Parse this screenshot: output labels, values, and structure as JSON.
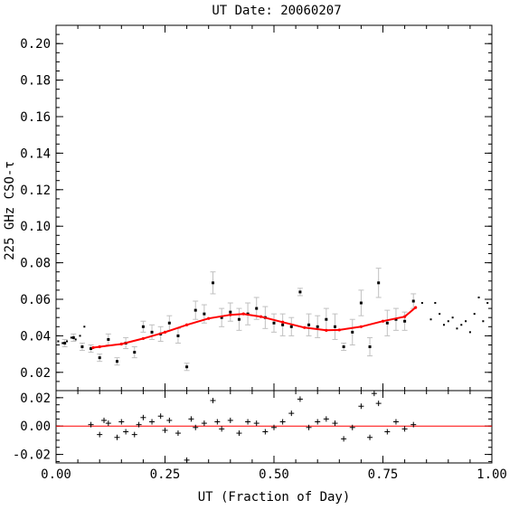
{
  "chart_data": {
    "type": "scatter",
    "title": "UT Date: 20060207",
    "xlabel": "UT (Fraction of Day)",
    "ylabel": "225 GHz CSO-τ",
    "xlim": [
      0.0,
      1.0
    ],
    "xticks": [
      "0.00",
      "0.25",
      "0.50",
      "0.75",
      "1.00"
    ],
    "xtick_values": [
      0.0,
      0.25,
      0.5,
      0.75,
      1.0
    ],
    "top_panel": {
      "ylim": [
        0.01,
        0.21
      ],
      "yticks": [
        "0.02",
        "0.04",
        "0.06",
        "0.08",
        "0.10",
        "0.12",
        "0.14",
        "0.16",
        "0.18",
        "0.20"
      ],
      "ytick_values": [
        0.02,
        0.04,
        0.06,
        0.08,
        0.1,
        0.12,
        0.14,
        0.16,
        0.18,
        0.2
      ],
      "measured_points": {
        "x": [
          0.02,
          0.04,
          0.06,
          0.08,
          0.1,
          0.12,
          0.14,
          0.16,
          0.18,
          0.2,
          0.22,
          0.24,
          0.26,
          0.28,
          0.3,
          0.32,
          0.34,
          0.36,
          0.38,
          0.4,
          0.42,
          0.44,
          0.46,
          0.48,
          0.5,
          0.52,
          0.54,
          0.56,
          0.58,
          0.6,
          0.62,
          0.64,
          0.66,
          0.68,
          0.7,
          0.72,
          0.74,
          0.76,
          0.78,
          0.8,
          0.82
        ],
        "y": [
          0.036,
          0.039,
          0.034,
          0.033,
          0.028,
          0.038,
          0.026,
          0.036,
          0.031,
          0.045,
          0.042,
          0.041,
          0.047,
          0.04,
          0.023,
          0.054,
          0.052,
          0.069,
          0.05,
          0.053,
          0.049,
          0.052,
          0.055,
          0.05,
          0.047,
          0.046,
          0.045,
          0.064,
          0.046,
          0.045,
          0.049,
          0.045,
          0.034,
          0.042,
          0.058,
          0.034,
          0.069,
          0.047,
          0.049,
          0.048,
          0.059
        ],
        "yerr": [
          0.002,
          0.002,
          0.002,
          0.002,
          0.002,
          0.003,
          0.002,
          0.003,
          0.003,
          0.003,
          0.004,
          0.004,
          0.004,
          0.004,
          0.002,
          0.005,
          0.005,
          0.006,
          0.005,
          0.005,
          0.006,
          0.006,
          0.006,
          0.006,
          0.005,
          0.006,
          0.005,
          0.002,
          0.006,
          0.006,
          0.006,
          0.007,
          0.002,
          0.007,
          0.007,
          0.005,
          0.008,
          0.007,
          0.006,
          0.005,
          0.004
        ]
      },
      "extra_points": {
        "x": [
          0.005,
          0.015,
          0.025,
          0.035,
          0.045,
          0.055,
          0.065,
          0.84,
          0.86,
          0.87,
          0.88,
          0.89,
          0.9,
          0.91,
          0.92,
          0.93,
          0.94,
          0.95,
          0.96,
          0.97,
          0.98,
          0.99
        ],
        "y": [
          0.037,
          0.036,
          0.037,
          0.039,
          0.038,
          0.04,
          0.045,
          0.058,
          0.049,
          0.058,
          0.052,
          0.046,
          0.048,
          0.05,
          0.044,
          0.046,
          0.048,
          0.042,
          0.052,
          0.061,
          0.048,
          0.058
        ]
      },
      "fit_line": {
        "x": [
          0.085,
          0.1,
          0.15,
          0.2,
          0.25,
          0.3,
          0.35,
          0.4,
          0.43,
          0.47,
          0.52,
          0.57,
          0.62,
          0.65,
          0.7,
          0.75,
          0.8,
          0.825
        ],
        "y": [
          0.0335,
          0.034,
          0.0355,
          0.0385,
          0.042,
          0.046,
          0.0495,
          0.0515,
          0.052,
          0.0505,
          0.0475,
          0.0445,
          0.043,
          0.0432,
          0.045,
          0.048,
          0.0505,
          0.0555
        ]
      }
    },
    "bottom_panel": {
      "ylim": [
        -0.026,
        0.025
      ],
      "yticks": [
        "-0.02",
        "0.00",
        "0.02"
      ],
      "ytick_values": [
        -0.02,
        0.0,
        0.02
      ],
      "zero_line": 0.0,
      "residuals": {
        "x": [
          0.08,
          0.1,
          0.11,
          0.12,
          0.14,
          0.15,
          0.16,
          0.18,
          0.19,
          0.2,
          0.22,
          0.24,
          0.25,
          0.26,
          0.28,
          0.3,
          0.31,
          0.32,
          0.34,
          0.36,
          0.37,
          0.38,
          0.4,
          0.42,
          0.44,
          0.46,
          0.48,
          0.5,
          0.52,
          0.54,
          0.56,
          0.58,
          0.6,
          0.62,
          0.64,
          0.66,
          0.68,
          0.7,
          0.72,
          0.73,
          0.74,
          0.76,
          0.78,
          0.8,
          0.82
        ],
        "y": [
          0.001,
          -0.006,
          0.004,
          0.002,
          -0.008,
          0.003,
          -0.004,
          -0.006,
          0.001,
          0.006,
          0.003,
          0.007,
          -0.003,
          0.004,
          -0.005,
          -0.024,
          0.005,
          -0.001,
          0.002,
          0.018,
          0.003,
          -0.002,
          0.004,
          -0.005,
          0.003,
          0.002,
          -0.004,
          -0.001,
          0.003,
          0.009,
          0.019,
          -0.001,
          0.003,
          0.005,
          0.002,
          -0.009,
          -0.001,
          0.014,
          -0.008,
          0.023,
          0.016,
          -0.004,
          0.003,
          -0.002,
          0.001
        ]
      }
    }
  },
  "colors": {
    "points": "#000000",
    "error_bars": "#c0c0c0",
    "fit": "#ff0000",
    "zero_line": "#ff0000",
    "axes": "#000000",
    "background": "#ffffff"
  }
}
